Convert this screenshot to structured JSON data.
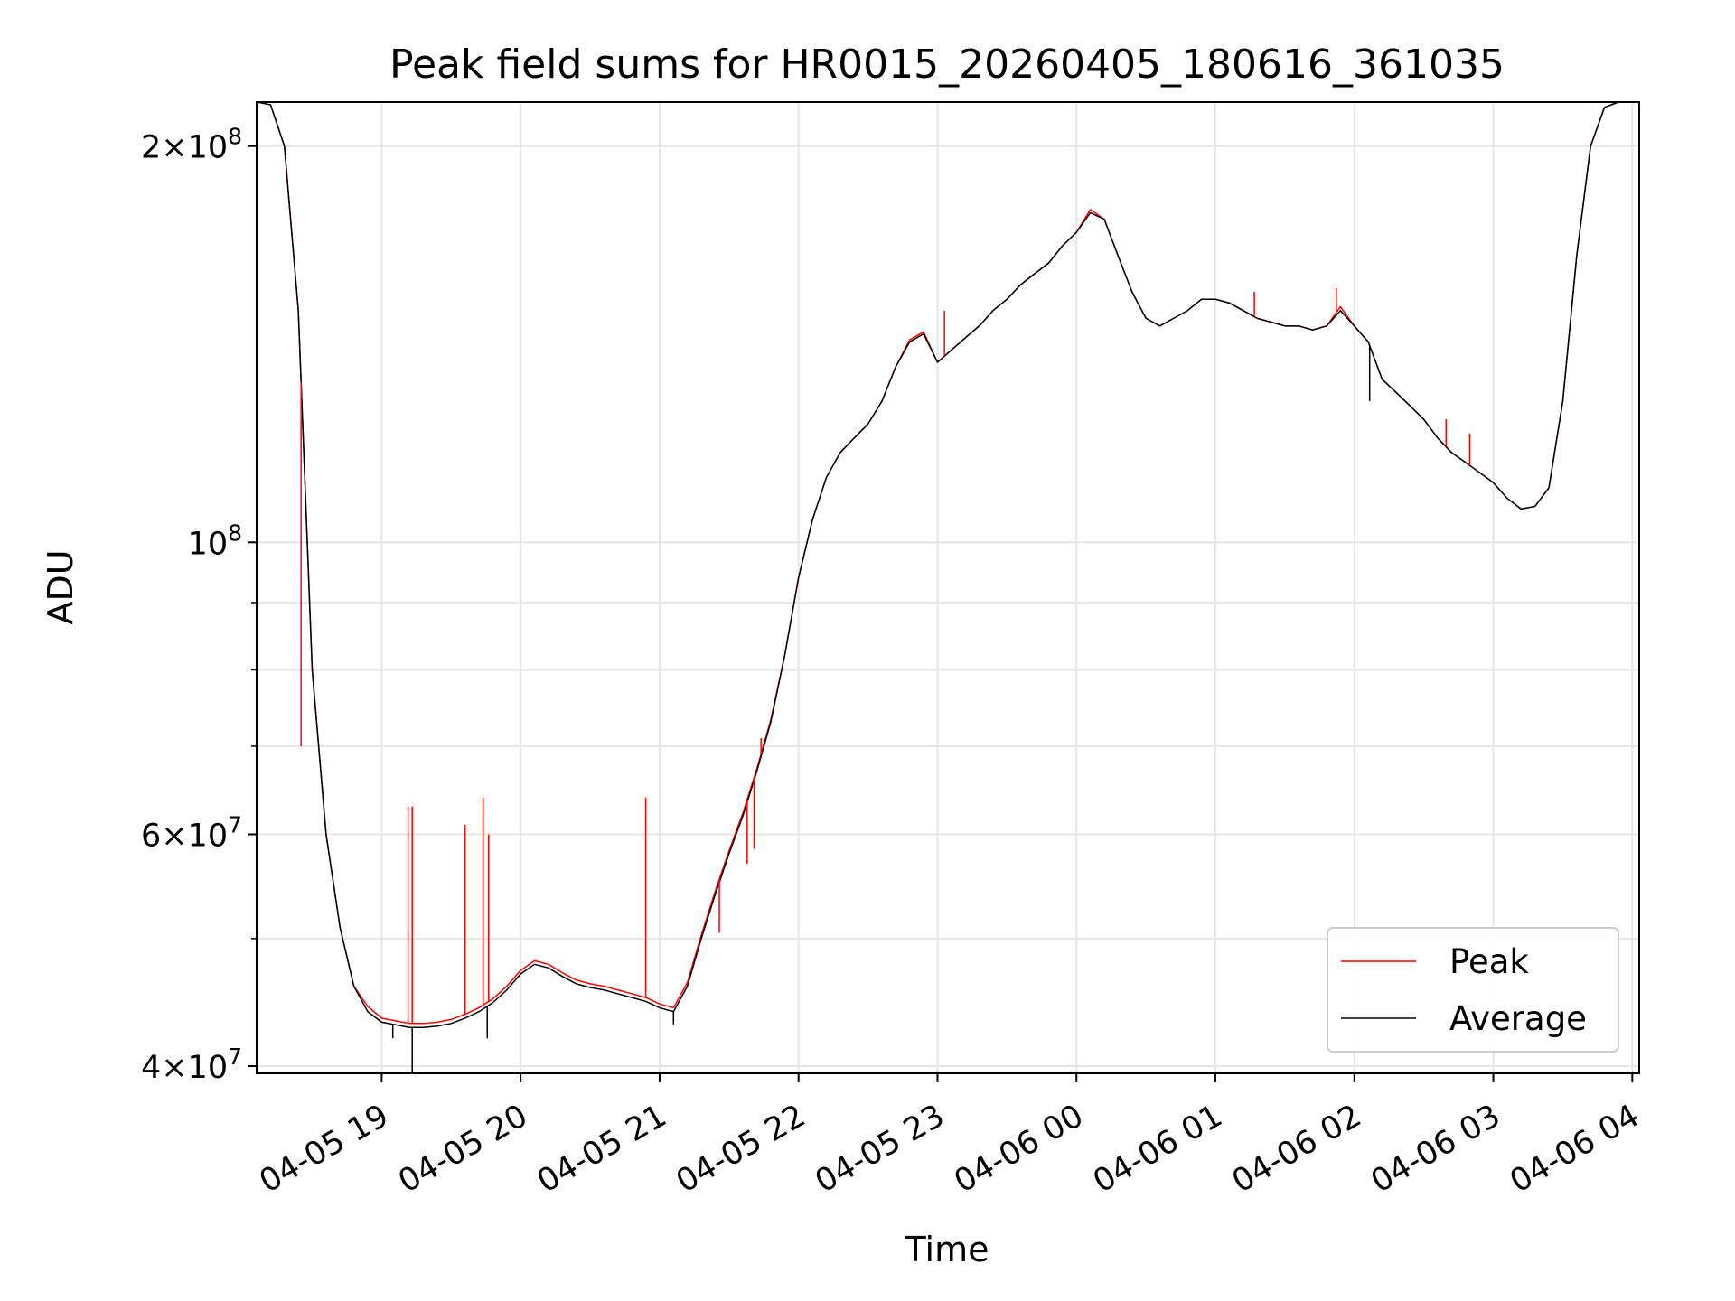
{
  "chart_data": {
    "type": "line",
    "title": "Peak field sums for HR0015_20260405_180616_361035",
    "xlabel": "Time",
    "ylabel": "ADU",
    "yscale": "log",
    "ylim": [
      39500000,
      216000000
    ],
    "xlim_hours": [
      18.1,
      28.05
    ],
    "x_unit": "hours since 2026-04-05 00:00",
    "grid": true,
    "legend_position": "bottom-right",
    "x_ticks": [
      {
        "value": 19,
        "label": "04-05 19"
      },
      {
        "value": 20,
        "label": "04-05 20"
      },
      {
        "value": 21,
        "label": "04-05 21"
      },
      {
        "value": 22,
        "label": "04-05 22"
      },
      {
        "value": 23,
        "label": "04-05 23"
      },
      {
        "value": 24,
        "label": "04-06 00"
      },
      {
        "value": 25,
        "label": "04-06 01"
      },
      {
        "value": 26,
        "label": "04-06 02"
      },
      {
        "value": 27,
        "label": "04-06 03"
      },
      {
        "value": 28,
        "label": "04-06 04"
      }
    ],
    "y_major_ticks": [
      {
        "value": 40000000,
        "mantissa": "4",
        "exp": "7"
      },
      {
        "value": 60000000,
        "mantissa": "6",
        "exp": "7"
      },
      {
        "value": 100000000,
        "mantissa": "",
        "exp": "8"
      },
      {
        "value": 200000000,
        "mantissa": "2",
        "exp": "8"
      }
    ],
    "y_minor_gridlines": [
      50000000,
      70000000,
      80000000,
      90000000
    ],
    "series": [
      {
        "name": "Average",
        "color": "#000000",
        "x": [
          18.1,
          18.2,
          18.3,
          18.4,
          18.5,
          18.6,
          18.7,
          18.8,
          18.9,
          19.0,
          19.1,
          19.2,
          19.3,
          19.4,
          19.5,
          19.6,
          19.7,
          19.8,
          19.9,
          20.0,
          20.1,
          20.2,
          20.3,
          20.4,
          20.5,
          20.6,
          20.7,
          20.8,
          20.9,
          21.0,
          21.1,
          21.2,
          21.3,
          21.4,
          21.5,
          21.6,
          21.7,
          21.8,
          21.9,
          22.0,
          22.1,
          22.2,
          22.3,
          22.4,
          22.5,
          22.6,
          22.7,
          22.8,
          22.9,
          23.0,
          23.1,
          23.2,
          23.3,
          23.4,
          23.5,
          23.6,
          23.7,
          23.8,
          23.9,
          24.0,
          24.1,
          24.2,
          24.3,
          24.4,
          24.5,
          24.6,
          24.7,
          24.8,
          24.9,
          25.0,
          25.1,
          25.2,
          25.3,
          25.4,
          25.5,
          25.6,
          25.7,
          25.8,
          25.9,
          26.0,
          26.1,
          26.2,
          26.3,
          26.4,
          26.5,
          26.6,
          26.7,
          26.8,
          26.9,
          27.0,
          27.1,
          27.2,
          27.3,
          27.4,
          27.5,
          27.6,
          27.7,
          27.8,
          27.9,
          28.0
        ],
        "y": [
          216000000,
          215000000,
          200000000,
          150000000,
          80000000,
          60000000,
          51000000,
          46000000,
          44000000,
          43200000,
          43000000,
          42800000,
          42800000,
          42900000,
          43100000,
          43500000,
          44000000,
          44700000,
          45700000,
          47000000,
          47800000,
          47500000,
          46800000,
          46200000,
          45900000,
          45700000,
          45400000,
          45100000,
          44800000,
          44300000,
          44000000,
          46000000,
          50000000,
          54000000,
          58000000,
          62000000,
          67000000,
          73000000,
          82000000,
          94000000,
          104000000,
          112000000,
          117000000,
          120000000,
          123000000,
          128000000,
          136000000,
          142000000,
          144000000,
          137000000,
          140000000,
          143000000,
          146000000,
          150000000,
          153000000,
          157000000,
          160000000,
          163000000,
          168000000,
          172000000,
          178000000,
          176000000,
          165000000,
          155000000,
          148000000,
          146000000,
          148000000,
          150000000,
          153000000,
          153000000,
          152000000,
          150000000,
          148000000,
          147000000,
          146000000,
          146000000,
          145000000,
          146000000,
          150000000,
          146000000,
          142000000,
          133000000,
          130000000,
          127000000,
          124000000,
          120000000,
          117000000,
          115000000,
          113000000,
          111000000,
          108000000,
          106000000,
          106500000,
          110000000,
          128000000,
          165000000,
          200000000,
          214000000,
          216000000,
          216000000
        ]
      },
      {
        "name": "Peak",
        "color": "#ff0000",
        "x": [
          18.1,
          18.2,
          18.3,
          18.4,
          18.5,
          18.6,
          18.7,
          18.8,
          18.9,
          19.0,
          19.1,
          19.2,
          19.3,
          19.4,
          19.5,
          19.6,
          19.7,
          19.8,
          19.9,
          20.0,
          20.1,
          20.2,
          20.3,
          20.4,
          20.5,
          20.6,
          20.7,
          20.8,
          20.9,
          21.0,
          21.1,
          21.2,
          21.3,
          21.4,
          21.5,
          21.6,
          21.7,
          21.8,
          21.9,
          22.0,
          22.1,
          22.2,
          22.3,
          22.4,
          22.5,
          22.6,
          22.7,
          22.8,
          22.9,
          23.0,
          23.1,
          23.2,
          23.3,
          23.4,
          23.5,
          23.6,
          23.7,
          23.8,
          23.9,
          24.0,
          24.1,
          24.2,
          24.3,
          24.4,
          24.5,
          24.6,
          24.7,
          24.8,
          24.9,
          25.0,
          25.1,
          25.2,
          25.3,
          25.4,
          25.5,
          25.6,
          25.7,
          25.8,
          25.9,
          26.0,
          26.1,
          26.2,
          26.3,
          26.4,
          26.5,
          26.6,
          26.7,
          26.8,
          26.9,
          27.0,
          27.1,
          27.2,
          27.3,
          27.4,
          27.5,
          27.6,
          27.7,
          27.8,
          27.9,
          28.0
        ],
        "y": [
          216000000,
          215000000,
          200000000,
          150000000,
          80000000,
          60000000,
          51000000,
          46000000,
          44400000,
          43500000,
          43300000,
          43100000,
          43100000,
          43200000,
          43400000,
          43800000,
          44300000,
          45000000,
          46000000,
          47300000,
          48100000,
          47800000,
          47100000,
          46500000,
          46200000,
          46000000,
          45700000,
          45400000,
          45100000,
          44600000,
          44300000,
          46300000,
          50300000,
          54300000,
          58300000,
          62300000,
          67300000,
          73300000,
          82000000,
          94000000,
          104000000,
          112000000,
          117000000,
          120000000,
          123000000,
          128000000,
          136000000,
          142500000,
          144500000,
          137000000,
          140000000,
          143000000,
          146000000,
          150000000,
          153000000,
          157000000,
          160000000,
          163000000,
          168000000,
          172000000,
          179000000,
          176000000,
          165000000,
          155000000,
          148000000,
          146000000,
          148000000,
          150000000,
          153000000,
          153000000,
          152000000,
          150000000,
          148000000,
          147000000,
          146000000,
          146000000,
          145000000,
          146000000,
          151000000,
          146000000,
          142000000,
          133000000,
          130000000,
          127000000,
          124000000,
          120000000,
          117000000,
          115000000,
          113000000,
          111000000,
          108000000,
          106000000,
          106500000,
          110000000,
          128000000,
          165000000,
          200000000,
          214000000,
          216000000,
          216000000
        ]
      }
    ],
    "peak_spikes": [
      {
        "x": 18.42,
        "y": 70000000
      },
      {
        "x": 19.19,
        "y": 63000000
      },
      {
        "x": 19.22,
        "y": 63000000
      },
      {
        "x": 19.6,
        "y": 61000000
      },
      {
        "x": 19.73,
        "y": 64000000
      },
      {
        "x": 19.77,
        "y": 60000000
      },
      {
        "x": 20.9,
        "y": 64000000
      },
      {
        "x": 21.43,
        "y": 50500000
      },
      {
        "x": 21.63,
        "y": 57000000
      },
      {
        "x": 21.68,
        "y": 58500000
      },
      {
        "x": 21.73,
        "y": 71000000
      },
      {
        "x": 23.05,
        "y": 150000000
      },
      {
        "x": 25.28,
        "y": 155000000
      },
      {
        "x": 25.87,
        "y": 156000000
      },
      {
        "x": 26.66,
        "y": 124000000
      },
      {
        "x": 26.83,
        "y": 121000000
      }
    ],
    "average_dips": [
      {
        "x": 19.08,
        "y": 42000000
      },
      {
        "x": 19.22,
        "y": 39500000
      },
      {
        "x": 19.76,
        "y": 42000000
      },
      {
        "x": 21.1,
        "y": 43000000
      },
      {
        "x": 26.11,
        "y": 128000000
      }
    ],
    "legend": {
      "entries": [
        {
          "label": "Peak",
          "color": "#ff0000"
        },
        {
          "label": "Average",
          "color": "#000000"
        }
      ]
    }
  }
}
